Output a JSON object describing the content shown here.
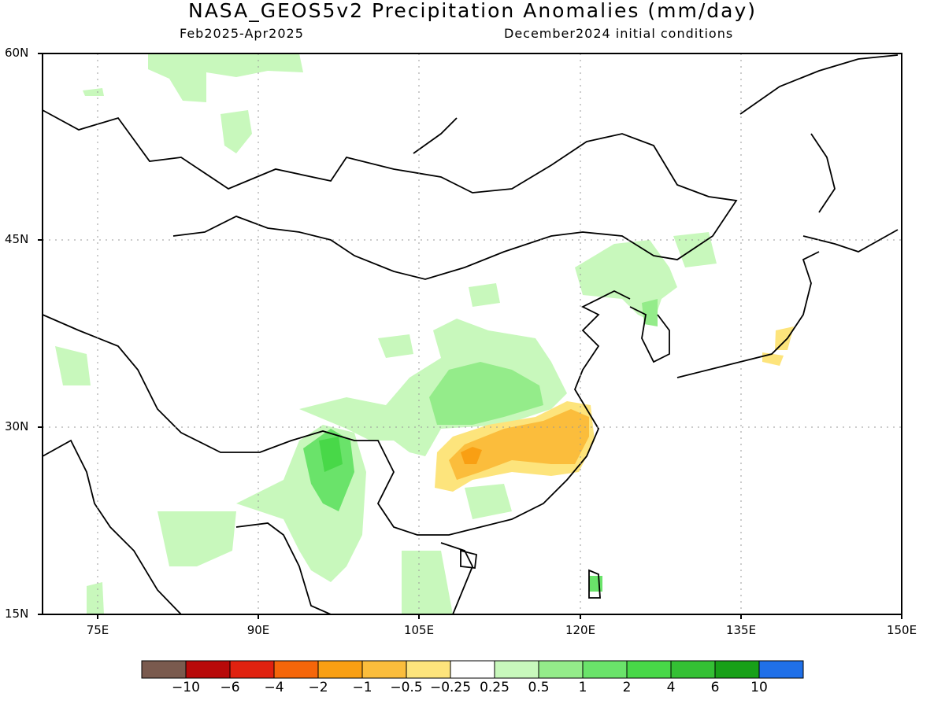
{
  "header": {
    "title": "NASA_GEOS5v2 Precipitation Anomalies (mm/day)",
    "period": "Feb2025-Apr2025",
    "init": "December2024 initial conditions"
  },
  "axes": {
    "lat_labels": [
      "60N",
      "45N",
      "30N",
      "15N"
    ],
    "lon_labels": [
      "75E",
      "90E",
      "105E",
      "120E",
      "135E",
      "150E"
    ]
  },
  "colorbar": {
    "colors": [
      "#7a5a4e",
      "#b80a0a",
      "#e0220f",
      "#f5660a",
      "#f99f13",
      "#fbbd3c",
      "#fde47c",
      "#ffffff",
      "#c8f8bc",
      "#94ec8a",
      "#6ae36a",
      "#48d848",
      "#34c034",
      "#18a018",
      "#2070e8"
    ],
    "labels": [
      "-10",
      "-6",
      "-4",
      "-2",
      "-1",
      "-0.5",
      "-0.25",
      "0.25",
      "0.5",
      "1",
      "2",
      "4",
      "6",
      "10"
    ]
  },
  "anomaly_regions": [
    {
      "name": "central-china-wet",
      "level": "0.5"
    },
    {
      "name": "central-china-core",
      "level": "1"
    },
    {
      "name": "yangtze-dry",
      "level": "-0.5"
    },
    {
      "name": "yangtze-dry-core",
      "level": "-1"
    },
    {
      "name": "myanmar-yunnan-wet",
      "level": "2"
    },
    {
      "name": "northeast-wet",
      "level": "0.5"
    },
    {
      "name": "japan-dry",
      "level": "-0.25"
    }
  ]
}
